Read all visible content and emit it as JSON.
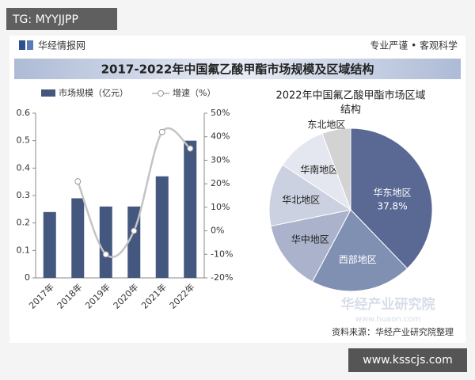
{
  "overlay": {
    "tag": "TG: MYYJJPP",
    "site": "www.ksscjs.com"
  },
  "header": {
    "brand": "华经情报网",
    "slogan": "专业严谨 • 客观科学",
    "title": "2017-2022年中国氟乙酸甲酯市场规模及区域结构"
  },
  "watermark": {
    "name": "华经产业研究院",
    "url": "www.huaon.com"
  },
  "footer": {
    "source": "资料来源：华经产业研究院整理"
  },
  "chart_data": [
    {
      "type": "bar",
      "categories": [
        "2017年",
        "2018年",
        "2019年",
        "2020年",
        "2021年",
        "2022年"
      ],
      "series": [
        {
          "name": "市场规模（亿元）",
          "type": "bar",
          "color": "#44577f",
          "values": [
            0.24,
            0.29,
            0.26,
            0.26,
            0.37,
            0.5
          ]
        },
        {
          "name": "增速（%）",
          "type": "line",
          "axis": "y2",
          "color": "#c4c4c4",
          "values": [
            null,
            21,
            -10,
            0,
            42,
            35
          ]
        }
      ],
      "ylim": [
        0,
        0.6
      ],
      "yticks": [
        0,
        0.1,
        0.2,
        0.3,
        0.4,
        0.5,
        0.6
      ],
      "y2lim": [
        -20,
        50
      ],
      "y2ticks": [
        {
          "value": -20,
          "label": "-20%"
        },
        {
          "value": -10,
          "label": "-10%"
        },
        {
          "value": 0,
          "label": "0%"
        },
        {
          "value": 10,
          "label": "10%"
        },
        {
          "value": 20,
          "label": "20%"
        },
        {
          "value": 30,
          "label": "30%"
        },
        {
          "value": 40,
          "label": "40%"
        },
        {
          "value": 50,
          "label": "50%"
        }
      ],
      "grid": false,
      "legend": "top"
    },
    {
      "type": "pie",
      "title": [
        "2022年中国氟乙酸甲酯市场区域",
        "结构"
      ],
      "categories": [
        "华东地区",
        "西部地区",
        "华中地区",
        "华北地区",
        "华南地区",
        "东北地区"
      ],
      "values": [
        37.8,
        20,
        14,
        12.5,
        10,
        5.7
      ],
      "value_labels": [
        "37.8%",
        null,
        null,
        null,
        null,
        null
      ],
      "colors": [
        "#5a6994",
        "#8090b3",
        "#aab3cb",
        "#cbd1e0",
        "#e4e7ef",
        "#d3d3d3"
      ]
    }
  ]
}
